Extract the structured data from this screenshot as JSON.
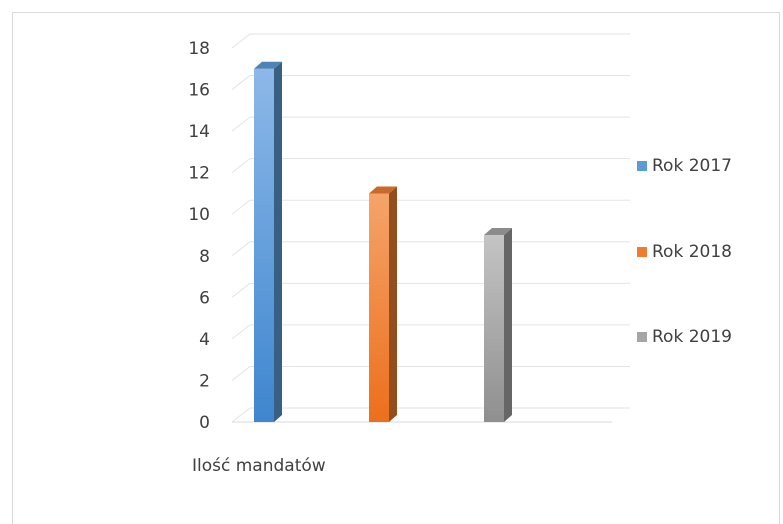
{
  "chart_data": {
    "type": "bar",
    "categories": [
      "Ilość mandatów"
    ],
    "series": [
      {
        "name": "Rok 2017",
        "values": [
          17
        ],
        "color": "#5b9bd5"
      },
      {
        "name": "Rok 2018",
        "values": [
          11
        ],
        "color": "#ed7d31"
      },
      {
        "name": "Rok 2019",
        "values": [
          9
        ],
        "color": "#a5a5a5"
      }
    ],
    "ylim": [
      0,
      18
    ],
    "yticks": [
      0,
      2,
      4,
      6,
      8,
      10,
      12,
      14,
      16,
      18
    ],
    "grid": true,
    "legend_position": "right",
    "style": "3d-column"
  }
}
